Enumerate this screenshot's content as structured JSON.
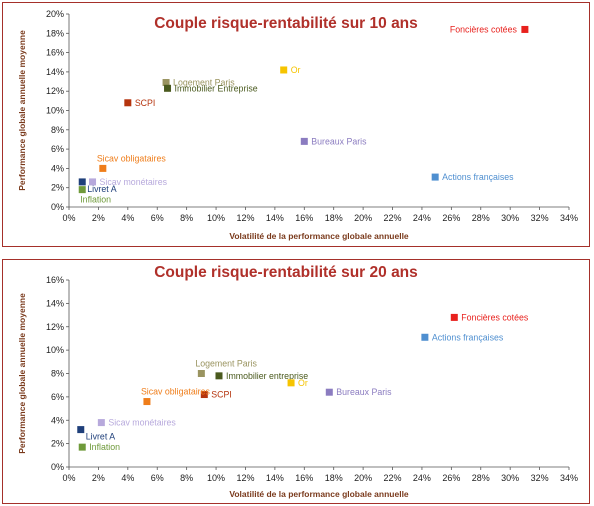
{
  "chart_data": [
    {
      "type": "scatter",
      "title": "Couple risque-rentabilité sur 10 ans",
      "xlabel": "Volatilité de la performance globale annuelle",
      "ylabel": "Performance globale annuelle moyenne",
      "xlim": [
        0,
        34
      ],
      "ylim": [
        0,
        20
      ],
      "x_ticks": [
        "0%",
        "2%",
        "4%",
        "6%",
        "8%",
        "10%",
        "12%",
        "14%",
        "16%",
        "18%",
        "20%",
        "22%",
        "24%",
        "26%",
        "28%",
        "30%",
        "32%",
        "34%"
      ],
      "y_ticks": [
        "0%",
        "2%",
        "4%",
        "6%",
        "8%",
        "10%",
        "12%",
        "14%",
        "16%",
        "18%",
        "20%"
      ],
      "grid": false,
      "points": [
        {
          "label": "Foncières cotées",
          "x": 31.0,
          "y": 18.4,
          "color": "#e8211d",
          "label_pos": "left"
        },
        {
          "label": "Or",
          "x": 14.6,
          "y": 14.2,
          "color": "#f6c400",
          "label_pos": "right"
        },
        {
          "label": "Logement Paris",
          "x": 6.6,
          "y": 12.9,
          "color": "#9a9460",
          "label_pos": "right"
        },
        {
          "label": "Immobilier Entreprise",
          "x": 6.7,
          "y": 12.3,
          "color": "#4a5a1e",
          "label_pos": "right"
        },
        {
          "label": "SCPI",
          "x": 4.0,
          "y": 10.8,
          "color": "#b5340e",
          "label_pos": "right"
        },
        {
          "label": "Bureaux Paris",
          "x": 16.0,
          "y": 6.8,
          "color": "#8b7cc0",
          "label_pos": "right"
        },
        {
          "label": "Sicav obligataires",
          "x": 2.3,
          "y": 4.0,
          "color": "#ef7d1a",
          "label_pos": "above"
        },
        {
          "label": "Actions françaises",
          "x": 24.9,
          "y": 3.1,
          "color": "#4f8fd0",
          "label_pos": "right"
        },
        {
          "label": "Sicav monétaires",
          "x": 1.6,
          "y": 2.6,
          "color": "#b7a9dc",
          "label_pos": "right"
        },
        {
          "label": "Livret A",
          "x": 0.9,
          "y": 2.6,
          "color": "#1f3f7a",
          "label_pos": "below-right"
        },
        {
          "label": "Inflation",
          "x": 0.9,
          "y": 1.8,
          "color": "#6f9a3a",
          "label_pos": "below"
        }
      ]
    },
    {
      "type": "scatter",
      "title": "Couple risque-rentabilité sur 20 ans",
      "xlabel": "Volatilité de la performance globale annuelle",
      "ylabel": "Performance globale annuelle moyenne",
      "xlim": [
        0,
        34
      ],
      "ylim": [
        0,
        16
      ],
      "x_ticks": [
        "0%",
        "2%",
        "4%",
        "6%",
        "8%",
        "10%",
        "12%",
        "14%",
        "16%",
        "18%",
        "20%",
        "22%",
        "24%",
        "26%",
        "28%",
        "30%",
        "32%",
        "34%"
      ],
      "y_ticks": [
        "0%",
        "2%",
        "4%",
        "6%",
        "8%",
        "10%",
        "12%",
        "14%",
        "16%"
      ],
      "grid": false,
      "points": [
        {
          "label": "Foncières cotées",
          "x": 26.2,
          "y": 12.8,
          "color": "#e8211d",
          "label_pos": "right"
        },
        {
          "label": "Actions françaises",
          "x": 24.2,
          "y": 11.1,
          "color": "#4f8fd0",
          "label_pos": "right"
        },
        {
          "label": "Logement Paris",
          "x": 9.0,
          "y": 8.0,
          "color": "#9a9460",
          "label_pos": "above"
        },
        {
          "label": "Immobilier entreprise",
          "x": 10.2,
          "y": 7.8,
          "color": "#4a5a1e",
          "label_pos": "right"
        },
        {
          "label": "Or",
          "x": 15.1,
          "y": 7.2,
          "color": "#f6c400",
          "label_pos": "right"
        },
        {
          "label": "Bureaux Paris",
          "x": 17.7,
          "y": 6.4,
          "color": "#8b7cc0",
          "label_pos": "right"
        },
        {
          "label": "SCPI",
          "x": 9.2,
          "y": 6.2,
          "color": "#b5340e",
          "label_pos": "right"
        },
        {
          "label": "Sicav obligataires",
          "x": 5.3,
          "y": 5.6,
          "color": "#ef7d1a",
          "label_pos": "above"
        },
        {
          "label": "Sicav monétaires",
          "x": 2.2,
          "y": 3.8,
          "color": "#b7a9dc",
          "label_pos": "right"
        },
        {
          "label": "Livret A",
          "x": 0.8,
          "y": 3.2,
          "color": "#1f3f7a",
          "label_pos": "below-right"
        },
        {
          "label": "Inflation",
          "x": 0.9,
          "y": 1.7,
          "color": "#6f9a3a",
          "label_pos": "right"
        }
      ]
    }
  ]
}
